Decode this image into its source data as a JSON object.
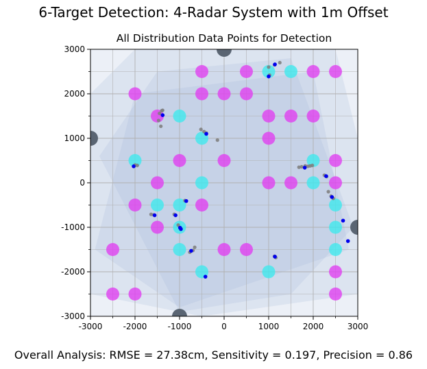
{
  "suptitle": "6-Target Detection: 4-Radar System with 1m Offset",
  "footer": "Overall Analysis: RMSE = 27.38cm, Sensitivity = 0.197, Precision = 0.86",
  "colors": {
    "target_magenta": "#e040f0",
    "target_cyan": "#40e8ee",
    "radar": "#5a6573",
    "detection_blue": "#0000ee",
    "distribution_gray": "#808080",
    "coverage": "#9fb3d6",
    "grid": "#b0b0b0"
  },
  "chart_data": {
    "type": "scatter",
    "title": "All Distribution Data Points for Detection",
    "xlabel": "",
    "ylabel": "",
    "xlim": [
      -3000,
      3000
    ],
    "ylim": [
      -3000,
      3000
    ],
    "grid": true,
    "xticks": [
      -3000,
      -2000,
      -1000,
      0,
      1000,
      2000,
      3000
    ],
    "yticks": [
      -3000,
      -2000,
      -1000,
      0,
      1000,
      2000,
      3000
    ],
    "xtick_labels": [
      "-3000",
      "-2000",
      "-1000",
      "0",
      "1000",
      "2000",
      "3000"
    ],
    "ytick_labels": [
      "-3000",
      "-2000",
      "-1000",
      "0",
      "1000",
      "2000",
      "3000"
    ],
    "radars": [
      [
        0,
        3000
      ],
      [
        -3000,
        1000
      ],
      [
        3000,
        -1000
      ],
      [
        -1000,
        -3000
      ]
    ],
    "coverage_polygons": [
      [
        [
          -3000,
          3000
        ],
        [
          3000,
          3000
        ],
        [
          3000,
          -3000
        ],
        [
          -3000,
          -3000
        ]
      ],
      [
        [
          -2000,
          3000
        ],
        [
          2500,
          3000
        ],
        [
          3000,
          1000
        ],
        [
          3000,
          -2500
        ],
        [
          -500,
          -3000
        ],
        [
          -3000,
          -2500
        ],
        [
          -3000,
          2000
        ]
      ],
      [
        [
          -1500,
          2500
        ],
        [
          1500,
          2800
        ],
        [
          2900,
          -1000
        ],
        [
          1500,
          -2500
        ],
        [
          -1000,
          -2900
        ],
        [
          -2800,
          600
        ]
      ],
      [
        [
          -2000,
          2000
        ],
        [
          2000,
          2500
        ],
        [
          2800,
          -1500
        ],
        [
          -1000,
          -2800
        ],
        [
          -2900,
          -1500
        ]
      ]
    ],
    "targets_magenta": [
      [
        -2000,
        2000
      ],
      [
        -1500,
        1500
      ],
      [
        -1000,
        500
      ],
      [
        -1500,
        0
      ],
      [
        -2000,
        -500
      ],
      [
        -1500,
        -1000
      ],
      [
        -2500,
        -1500
      ],
      [
        -2500,
        -2500
      ],
      [
        -2000,
        -2500
      ],
      [
        -500,
        2500
      ],
      [
        -500,
        2000
      ],
      [
        0,
        2000
      ],
      [
        500,
        2500
      ],
      [
        500,
        2000
      ],
      [
        0,
        500
      ],
      [
        -500,
        -500
      ],
      [
        0,
        -1500
      ],
      [
        500,
        -1500
      ],
      [
        1000,
        1500
      ],
      [
        1000,
        1000
      ],
      [
        1000,
        0
      ],
      [
        1500,
        1500
      ],
      [
        1500,
        0
      ],
      [
        2000,
        2500
      ],
      [
        2000,
        1500
      ],
      [
        2500,
        2500
      ],
      [
        2500,
        500
      ],
      [
        2500,
        0
      ],
      [
        2500,
        -2000
      ],
      [
        2500,
        -2500
      ]
    ],
    "targets_cyan": [
      [
        -1000,
        1500
      ],
      [
        -2000,
        500
      ],
      [
        -500,
        1000
      ],
      [
        -500,
        0
      ],
      [
        -1500,
        -500
      ],
      [
        -1000,
        -500
      ],
      [
        -1000,
        -1000
      ],
      [
        -1000,
        -1500
      ],
      [
        -500,
        -2000
      ],
      [
        1000,
        2500
      ],
      [
        1500,
        2500
      ],
      [
        2000,
        500
      ],
      [
        2000,
        0
      ],
      [
        2500,
        -500
      ],
      [
        2500,
        -1000
      ],
      [
        2500,
        -1500
      ],
      [
        1000,
        -2000
      ]
    ],
    "distribution_points": [
      [
        -1400,
        1620
      ],
      [
        -1380,
        1630
      ],
      [
        -1450,
        1560
      ],
      [
        -1470,
        1400
      ],
      [
        -1420,
        1270
      ],
      [
        -520,
        1200
      ],
      [
        -450,
        1150
      ],
      [
        -400,
        1120
      ],
      [
        -150,
        960
      ],
      [
        -2000,
        400
      ],
      [
        -1950,
        390
      ],
      [
        -880,
        -400
      ],
      [
        -1640,
        -710
      ],
      [
        -1580,
        -720
      ],
      [
        -1120,
        -710
      ],
      [
        -1030,
        -950
      ],
      [
        -770,
        -1560
      ],
      [
        -700,
        -1520
      ],
      [
        -660,
        -1450
      ],
      [
        1000,
        2600
      ],
      [
        1020,
        2420
      ],
      [
        1250,
        2700
      ],
      [
        1130,
        2650
      ],
      [
        1680,
        350
      ],
      [
        1740,
        360
      ],
      [
        1820,
        380
      ],
      [
        1880,
        370
      ],
      [
        1930,
        380
      ],
      [
        1980,
        390
      ],
      [
        2250,
        170
      ],
      [
        2300,
        140
      ],
      [
        2340,
        -200
      ],
      [
        2400,
        -300
      ],
      [
        2450,
        -350
      ],
      [
        1130,
        -1650
      ],
      [
        1160,
        -1680
      ]
    ],
    "detections": [
      [
        -1380,
        1520
      ],
      [
        -400,
        1100
      ],
      [
        -2030,
        370
      ],
      [
        -850,
        -410
      ],
      [
        -1560,
        -730
      ],
      [
        -1090,
        -730
      ],
      [
        -990,
        -1010
      ],
      [
        -970,
        -1040
      ],
      [
        -740,
        -1530
      ],
      [
        1000,
        2390
      ],
      [
        1140,
        2660
      ],
      [
        1810,
        340
      ],
      [
        2290,
        150
      ],
      [
        2420,
        -320
      ],
      [
        2670,
        -850
      ],
      [
        2780,
        -1310
      ],
      [
        1140,
        -1660
      ],
      [
        -420,
        -2110
      ]
    ]
  }
}
